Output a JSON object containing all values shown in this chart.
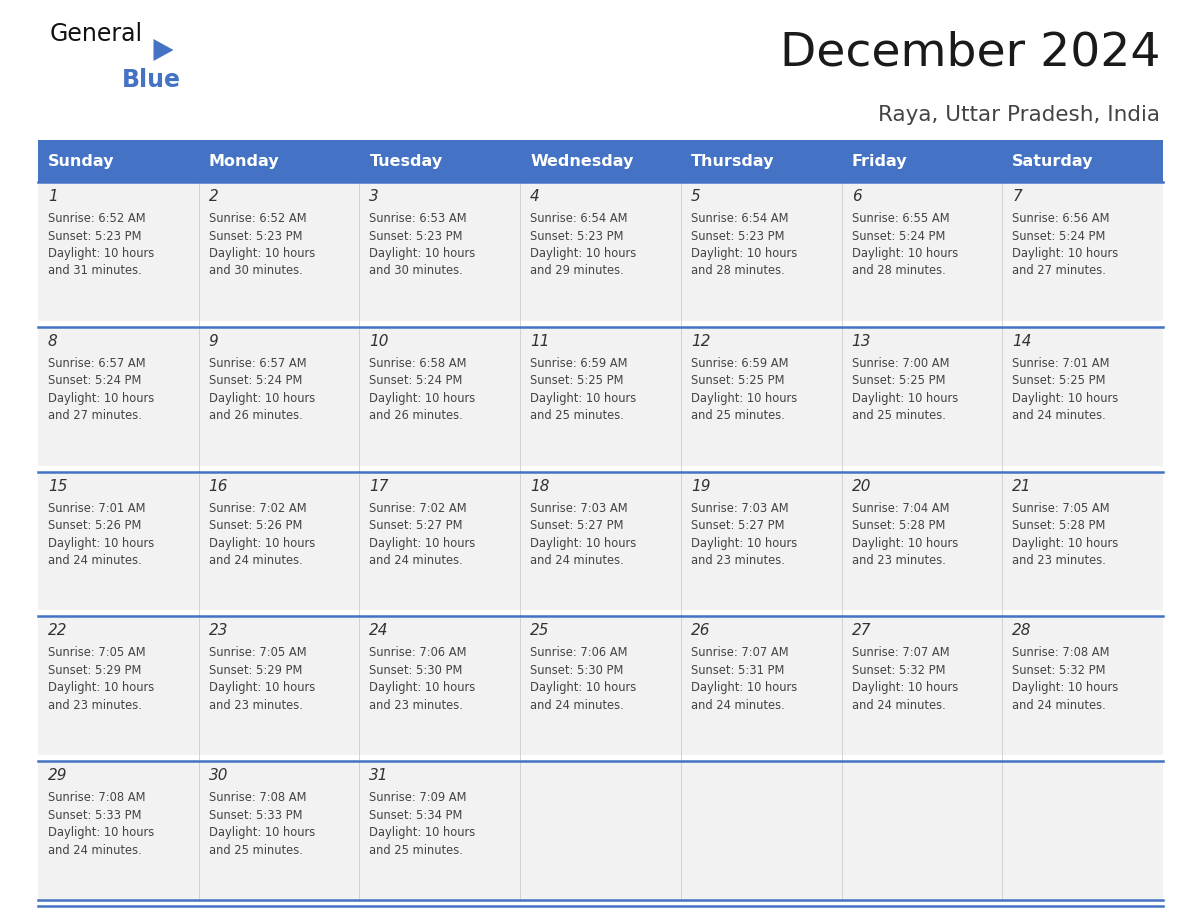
{
  "title": "December 2024",
  "subtitle": "Raya, Uttar Pradesh, India",
  "header_bg_color": "#4472C4",
  "header_text_color": "#FFFFFF",
  "days_of_week": [
    "Sunday",
    "Monday",
    "Tuesday",
    "Wednesday",
    "Thursday",
    "Friday",
    "Saturday"
  ],
  "cell_bg_color": "#F2F2F2",
  "border_color": "#4472C4",
  "day_text_color": "#333333",
  "info_text_color": "#444444",
  "calendar_data": [
    [
      {
        "day": 1,
        "sunrise": "6:52 AM",
        "sunset": "5:23 PM",
        "daylight_h": "10 hours",
        "daylight_m": "and 31 minutes."
      },
      {
        "day": 2,
        "sunrise": "6:52 AM",
        "sunset": "5:23 PM",
        "daylight_h": "10 hours",
        "daylight_m": "and 30 minutes."
      },
      {
        "day": 3,
        "sunrise": "6:53 AM",
        "sunset": "5:23 PM",
        "daylight_h": "10 hours",
        "daylight_m": "and 30 minutes."
      },
      {
        "day": 4,
        "sunrise": "6:54 AM",
        "sunset": "5:23 PM",
        "daylight_h": "10 hours",
        "daylight_m": "and 29 minutes."
      },
      {
        "day": 5,
        "sunrise": "6:54 AM",
        "sunset": "5:23 PM",
        "daylight_h": "10 hours",
        "daylight_m": "and 28 minutes."
      },
      {
        "day": 6,
        "sunrise": "6:55 AM",
        "sunset": "5:24 PM",
        "daylight_h": "10 hours",
        "daylight_m": "and 28 minutes."
      },
      {
        "day": 7,
        "sunrise": "6:56 AM",
        "sunset": "5:24 PM",
        "daylight_h": "10 hours",
        "daylight_m": "and 27 minutes."
      }
    ],
    [
      {
        "day": 8,
        "sunrise": "6:57 AM",
        "sunset": "5:24 PM",
        "daylight_h": "10 hours",
        "daylight_m": "and 27 minutes."
      },
      {
        "day": 9,
        "sunrise": "6:57 AM",
        "sunset": "5:24 PM",
        "daylight_h": "10 hours",
        "daylight_m": "and 26 minutes."
      },
      {
        "day": 10,
        "sunrise": "6:58 AM",
        "sunset": "5:24 PM",
        "daylight_h": "10 hours",
        "daylight_m": "and 26 minutes."
      },
      {
        "day": 11,
        "sunrise": "6:59 AM",
        "sunset": "5:25 PM",
        "daylight_h": "10 hours",
        "daylight_m": "and 25 minutes."
      },
      {
        "day": 12,
        "sunrise": "6:59 AM",
        "sunset": "5:25 PM",
        "daylight_h": "10 hours",
        "daylight_m": "and 25 minutes."
      },
      {
        "day": 13,
        "sunrise": "7:00 AM",
        "sunset": "5:25 PM",
        "daylight_h": "10 hours",
        "daylight_m": "and 25 minutes."
      },
      {
        "day": 14,
        "sunrise": "7:01 AM",
        "sunset": "5:25 PM",
        "daylight_h": "10 hours",
        "daylight_m": "and 24 minutes."
      }
    ],
    [
      {
        "day": 15,
        "sunrise": "7:01 AM",
        "sunset": "5:26 PM",
        "daylight_h": "10 hours",
        "daylight_m": "and 24 minutes."
      },
      {
        "day": 16,
        "sunrise": "7:02 AM",
        "sunset": "5:26 PM",
        "daylight_h": "10 hours",
        "daylight_m": "and 24 minutes."
      },
      {
        "day": 17,
        "sunrise": "7:02 AM",
        "sunset": "5:27 PM",
        "daylight_h": "10 hours",
        "daylight_m": "and 24 minutes."
      },
      {
        "day": 18,
        "sunrise": "7:03 AM",
        "sunset": "5:27 PM",
        "daylight_h": "10 hours",
        "daylight_m": "and 24 minutes."
      },
      {
        "day": 19,
        "sunrise": "7:03 AM",
        "sunset": "5:27 PM",
        "daylight_h": "10 hours",
        "daylight_m": "and 23 minutes."
      },
      {
        "day": 20,
        "sunrise": "7:04 AM",
        "sunset": "5:28 PM",
        "daylight_h": "10 hours",
        "daylight_m": "and 23 minutes."
      },
      {
        "day": 21,
        "sunrise": "7:05 AM",
        "sunset": "5:28 PM",
        "daylight_h": "10 hours",
        "daylight_m": "and 23 minutes."
      }
    ],
    [
      {
        "day": 22,
        "sunrise": "7:05 AM",
        "sunset": "5:29 PM",
        "daylight_h": "10 hours",
        "daylight_m": "and 23 minutes."
      },
      {
        "day": 23,
        "sunrise": "7:05 AM",
        "sunset": "5:29 PM",
        "daylight_h": "10 hours",
        "daylight_m": "and 23 minutes."
      },
      {
        "day": 24,
        "sunrise": "7:06 AM",
        "sunset": "5:30 PM",
        "daylight_h": "10 hours",
        "daylight_m": "and 23 minutes."
      },
      {
        "day": 25,
        "sunrise": "7:06 AM",
        "sunset": "5:30 PM",
        "daylight_h": "10 hours",
        "daylight_m": "and 24 minutes."
      },
      {
        "day": 26,
        "sunrise": "7:07 AM",
        "sunset": "5:31 PM",
        "daylight_h": "10 hours",
        "daylight_m": "and 24 minutes."
      },
      {
        "day": 27,
        "sunrise": "7:07 AM",
        "sunset": "5:32 PM",
        "daylight_h": "10 hours",
        "daylight_m": "and 24 minutes."
      },
      {
        "day": 28,
        "sunrise": "7:08 AM",
        "sunset": "5:32 PM",
        "daylight_h": "10 hours",
        "daylight_m": "and 24 minutes."
      }
    ],
    [
      {
        "day": 29,
        "sunrise": "7:08 AM",
        "sunset": "5:33 PM",
        "daylight_h": "10 hours",
        "daylight_m": "and 24 minutes."
      },
      {
        "day": 30,
        "sunrise": "7:08 AM",
        "sunset": "5:33 PM",
        "daylight_h": "10 hours",
        "daylight_m": "and 25 minutes."
      },
      {
        "day": 31,
        "sunrise": "7:09 AM",
        "sunset": "5:34 PM",
        "daylight_h": "10 hours",
        "daylight_m": "and 25 minutes."
      },
      null,
      null,
      null,
      null
    ]
  ],
  "logo_text1": "General",
  "logo_text2": "Blue",
  "bg_color": "#FFFFFF",
  "fig_width": 11.88,
  "fig_height": 9.18,
  "dpi": 100
}
